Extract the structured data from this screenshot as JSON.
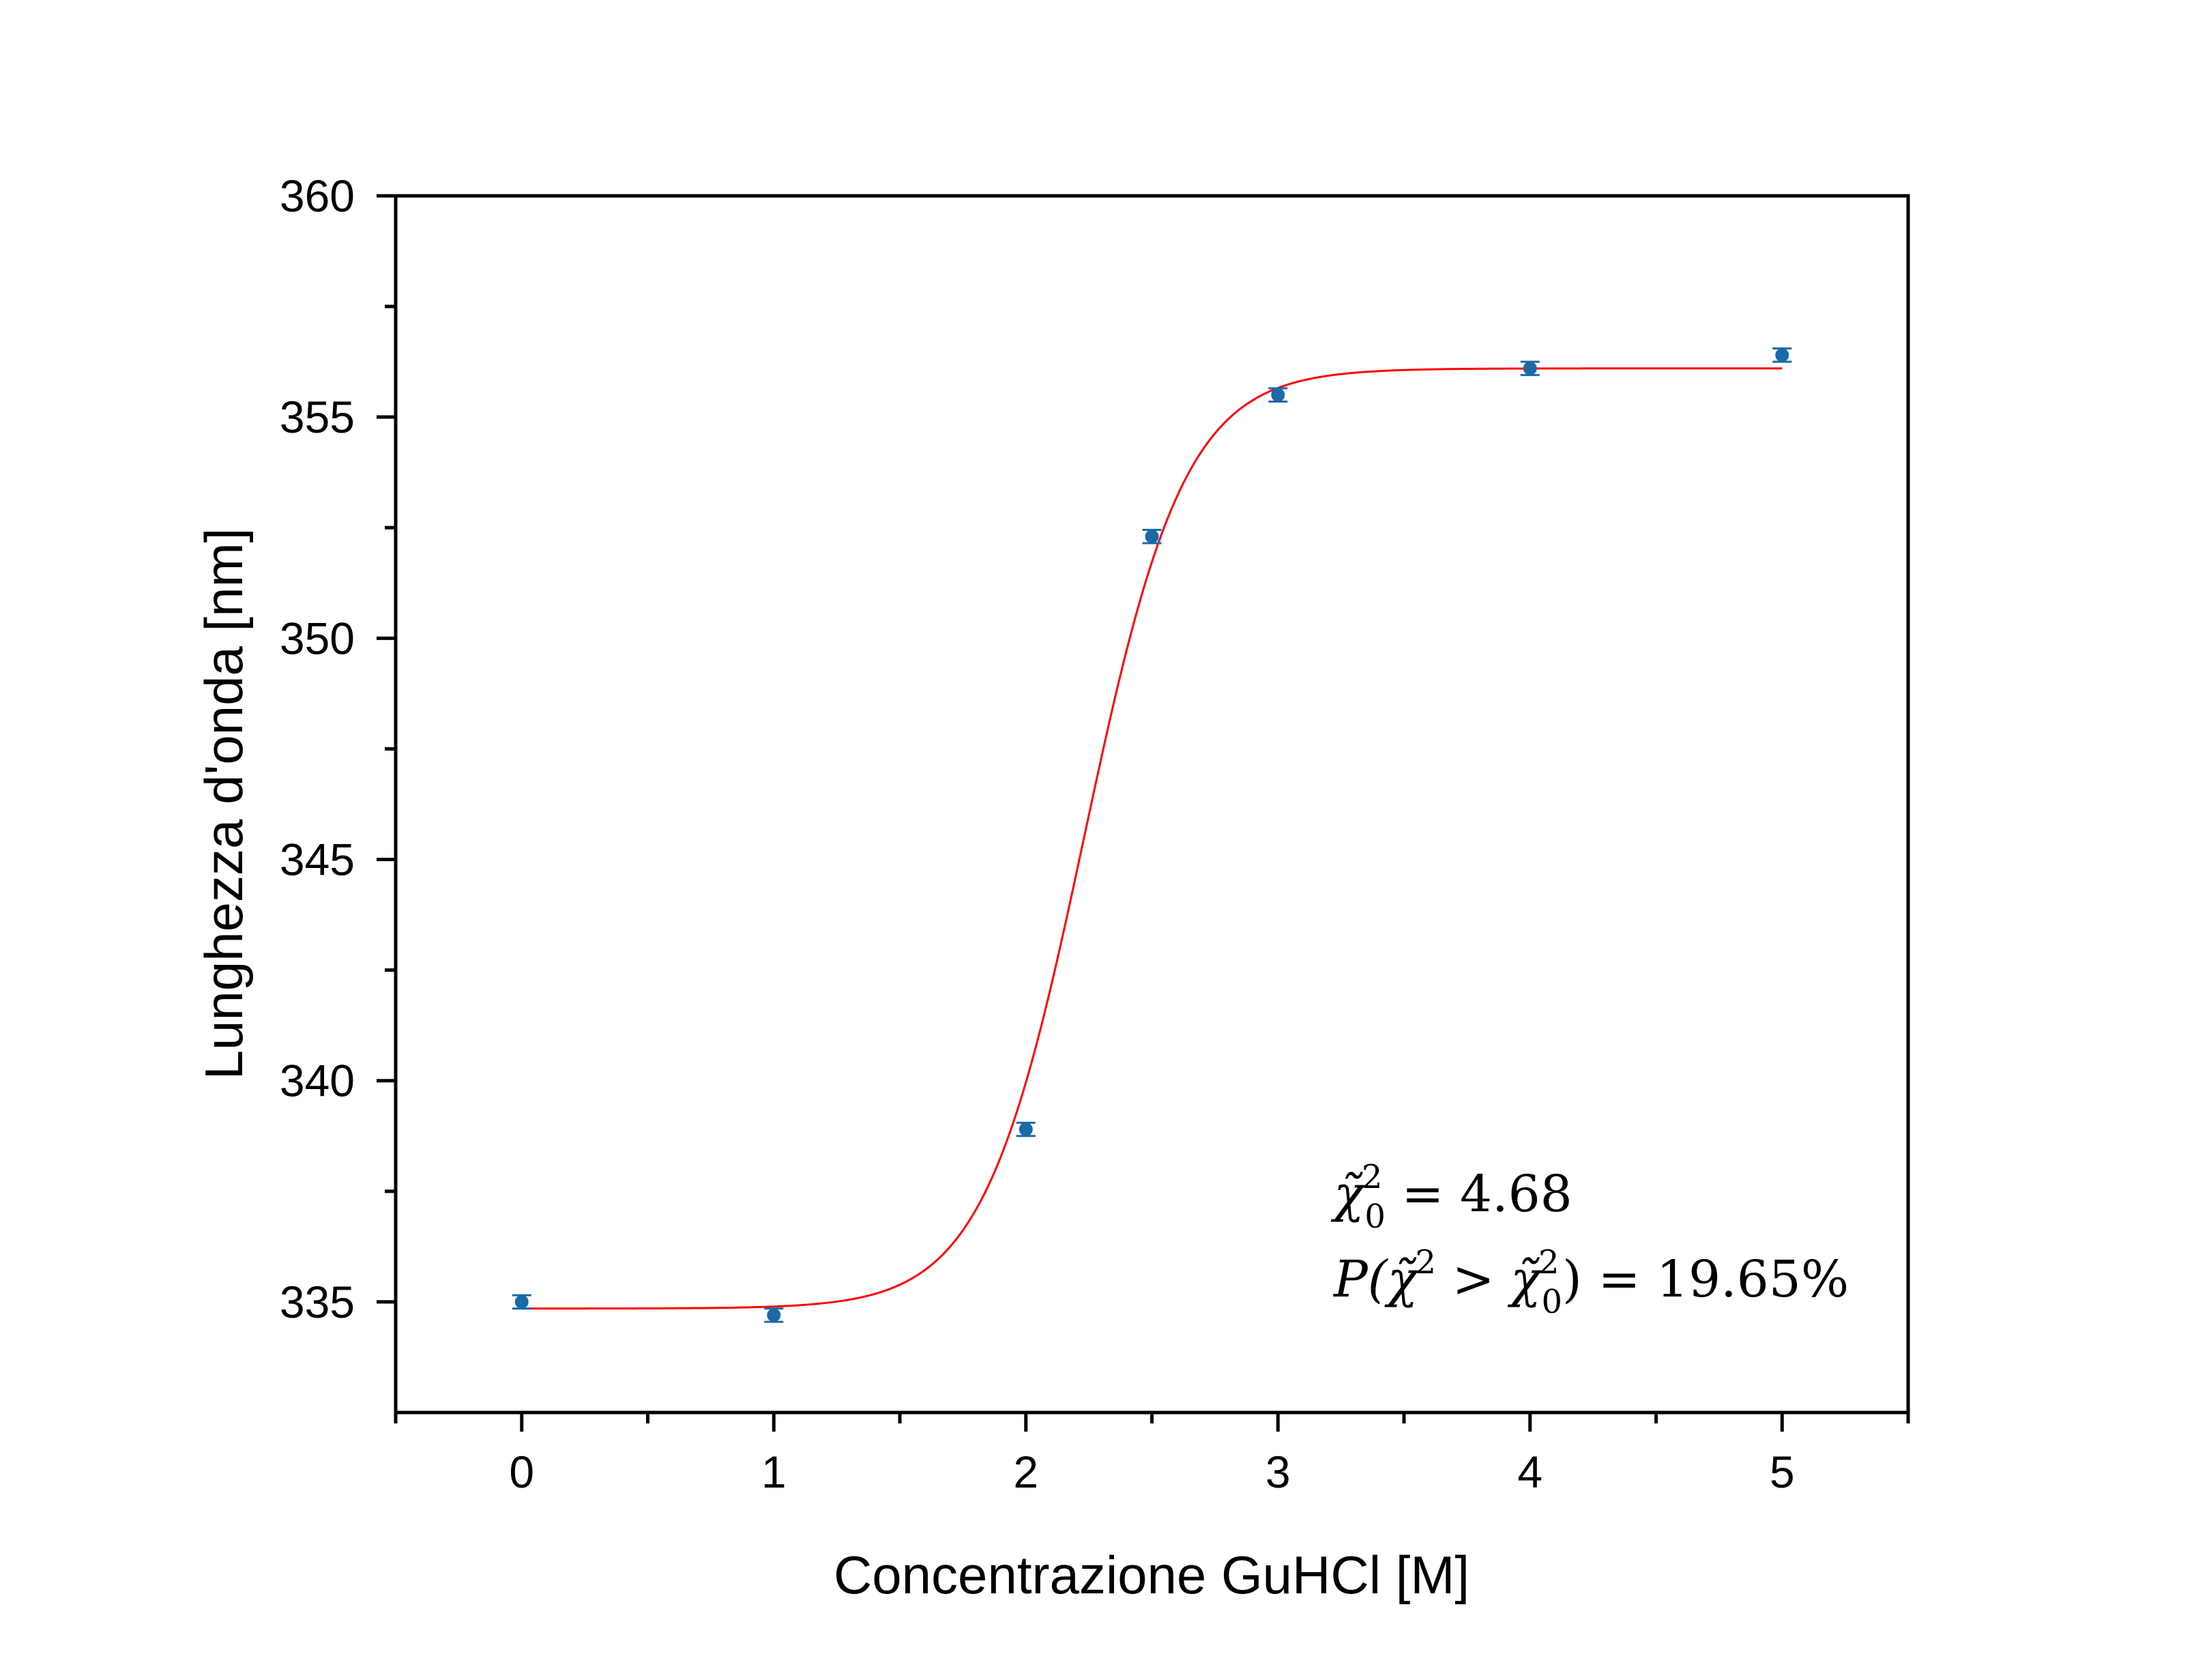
{
  "chart_data": {
    "type": "scatter",
    "xlabel": "Concentrazione GuHCl [M]",
    "ylabel": "Lunghezza d'onda [nm]",
    "xlim": [
      -0.5,
      5.5
    ],
    "ylim": [
      332.5,
      360
    ],
    "xticks": [
      0,
      1,
      2,
      3,
      4,
      5
    ],
    "yticks": [
      335,
      340,
      345,
      350,
      355,
      360
    ],
    "grid": false,
    "legend": "none",
    "series": [
      {
        "kind": "points",
        "color": "#1a6aa8",
        "x": [
          0,
          1,
          2,
          2.5,
          3,
          4,
          5
        ],
        "y": [
          335.0,
          334.7,
          338.9,
          352.3,
          355.5,
          356.1,
          356.4
        ],
        "yerr": [
          0.15,
          0.15,
          0.15,
          0.15,
          0.15,
          0.15,
          0.15
        ]
      },
      {
        "kind": "fit",
        "model": "sigmoid",
        "color": "#ff0000",
        "bottom": 334.85,
        "top": 356.1,
        "x_mid": 2.23,
        "width": 0.2,
        "x_range": [
          0,
          5
        ]
      }
    ],
    "annotations": [
      {
        "parts": [
          "χ̃",
          "2",
          "0",
          " = 4.68"
        ]
      },
      {
        "parts": [
          "P",
          "(χ̃",
          "2",
          " > χ̃",
          "2",
          "0",
          ") = 19.65%"
        ]
      }
    ]
  }
}
